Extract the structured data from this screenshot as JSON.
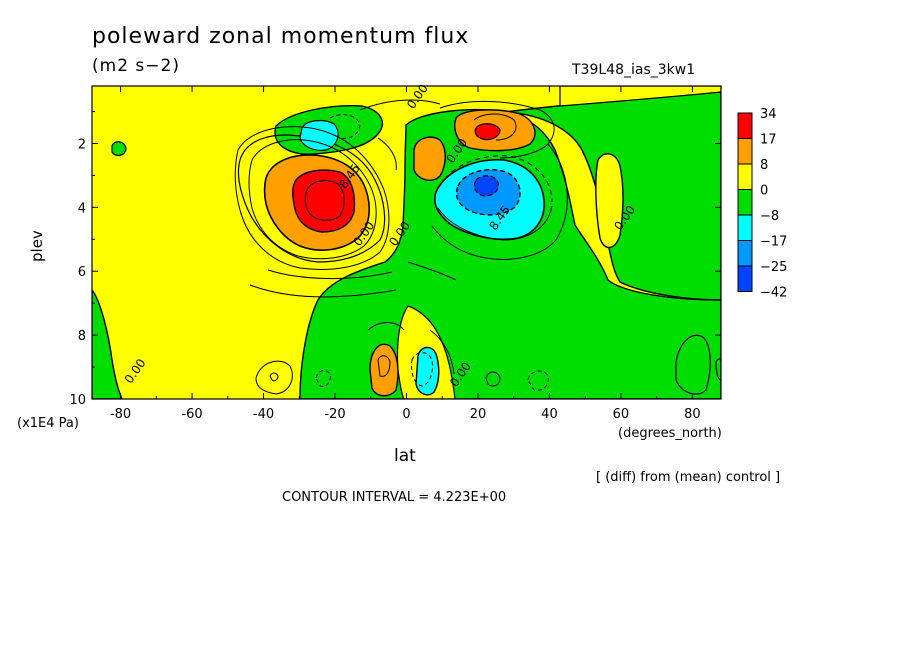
{
  "chart_data": {
    "type": "heatmap",
    "title": "poleward zonal momentum flux",
    "subtitle": "(m2 s−2)",
    "run_id": "T39L48_ias_3kw1",
    "xlabel": "lat",
    "x_unit": "(degrees_north)",
    "ylabel": "plev",
    "y_unit": "(x1E4 Pa)",
    "xlim": [
      -88,
      88
    ],
    "ylim": [
      10,
      0.2
    ],
    "x_ticks": [
      {
        "value": -80,
        "label": "-80"
      },
      {
        "value": -60,
        "label": "-60"
      },
      {
        "value": -40,
        "label": "-40"
      },
      {
        "value": -20,
        "label": "-20"
      },
      {
        "value": 0,
        "label": "0"
      },
      {
        "value": 20,
        "label": "20"
      },
      {
        "value": 40,
        "label": "40"
      },
      {
        "value": 60,
        "label": "60"
      },
      {
        "value": 80,
        "label": "80"
      }
    ],
    "y_ticks": [
      {
        "value": 2,
        "label": "2"
      },
      {
        "value": 4,
        "label": "4"
      },
      {
        "value": 6,
        "label": "6"
      },
      {
        "value": 8,
        "label": "8"
      },
      {
        "value": 10,
        "label": "10"
      }
    ],
    "legend": {
      "position": "right",
      "labels": [
        "34",
        "17",
        "8",
        "0",
        "−8",
        "−17",
        "−25",
        "−42"
      ],
      "colors": [
        "#ff0000",
        "#ff9f00",
        "#ffff00",
        "#00dd00",
        "#00ffff",
        "#0099ff",
        "#0044ff"
      ]
    },
    "fill_colors": {
      "pos_high": "#ff0000",
      "pos_mid": "#ff9f00",
      "pos_low": "#ffff00",
      "neg_low": "#00dd00",
      "neg_mid": "#00ffff",
      "neg_high": "#0099ff"
    },
    "contour_labels": [
      {
        "text": "0.00",
        "lat": 4,
        "plev": 0.6
      },
      {
        "text": "8.45",
        "lat": -15,
        "plev": 3.1
      },
      {
        "text": "0.00",
        "lat": -11,
        "plev": 4.9
      },
      {
        "text": "0.00",
        "lat": -1,
        "plev": 4.9
      },
      {
        "text": "0.00",
        "lat": 15,
        "plev": 2.3
      },
      {
        "text": "8.45",
        "lat": 27,
        "plev": 4.4
      },
      {
        "text": "0.00",
        "lat": 62,
        "plev": 4.4
      },
      {
        "text": "0.00",
        "lat": -75,
        "plev": 9.2
      },
      {
        "text": "0.00",
        "lat": 16,
        "plev": 9.3
      }
    ],
    "features": [
      {
        "name": "sh-max",
        "lat": -24,
        "plev": 3.5,
        "value": 34
      },
      {
        "name": "nh-min",
        "lat": 22,
        "plev": 3.2,
        "value": -30
      },
      {
        "name": "upper-nh-max",
        "lat": 22,
        "plev": 1.5,
        "value": 20
      },
      {
        "name": "upper-sh-min",
        "lat": -23,
        "plev": 1.4,
        "value": -12
      },
      {
        "name": "lower-max",
        "lat": -7,
        "plev": 9.1,
        "value": 12
      },
      {
        "name": "lower-min",
        "lat": 6,
        "plev": 9.1,
        "value": -14
      },
      {
        "name": "mid-max",
        "lat": 7,
        "plev": 2.3,
        "value": 10
      }
    ],
    "grid": false
  },
  "footer": {
    "diff_note": "[ (diff) from (mean) control ]",
    "contour_interval": "CONTOUR INTERVAL = 4.223E+00"
  }
}
